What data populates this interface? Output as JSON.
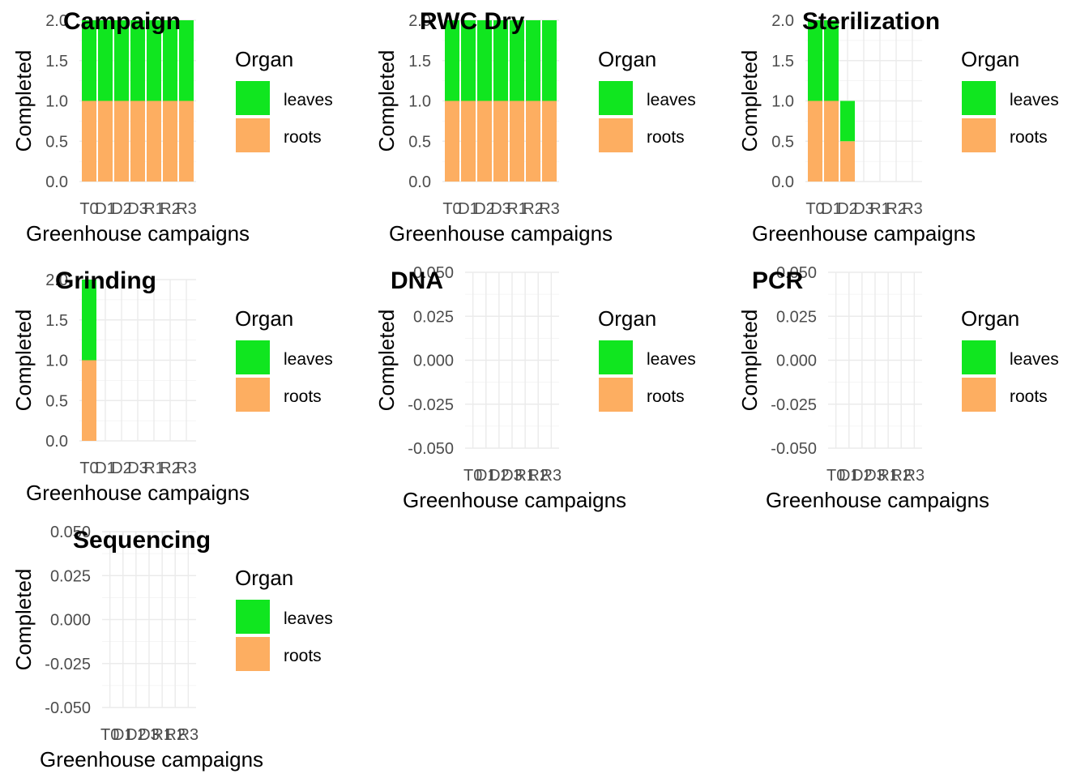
{
  "chart_data": [
    {
      "type": "bar",
      "stacked": true,
      "title": "Campaign",
      "xlabel": "Greenhouse campaigns",
      "ylabel": "Completed",
      "categories": [
        "T0",
        "D1",
        "D2",
        "D3",
        "R1",
        "R2",
        "R3"
      ],
      "ylim": [
        0,
        2
      ],
      "yticks": [
        "0.0",
        "0.5",
        "1.0",
        "1.5",
        "2.0"
      ],
      "grid": true,
      "legend": {
        "title": "Organ",
        "position": "right",
        "items": [
          "leaves",
          "roots"
        ]
      },
      "series": [
        {
          "name": "roots",
          "color": "#FDAE61",
          "values": [
            1,
            1,
            1,
            1,
            1,
            1,
            1
          ]
        },
        {
          "name": "leaves",
          "color": "#10E61F",
          "values": [
            1,
            1,
            1,
            1,
            1,
            1,
            1
          ]
        }
      ]
    },
    {
      "type": "bar",
      "stacked": true,
      "title": "RWC Dry",
      "xlabel": "Greenhouse campaigns",
      "ylabel": "Completed",
      "categories": [
        "T0",
        "D1",
        "D2",
        "D3",
        "R1",
        "R2",
        "R3"
      ],
      "ylim": [
        0,
        2
      ],
      "yticks": [
        "0.0",
        "0.5",
        "1.0",
        "1.5",
        "2.0"
      ],
      "grid": true,
      "legend": {
        "title": "Organ",
        "position": "right",
        "items": [
          "leaves",
          "roots"
        ]
      },
      "series": [
        {
          "name": "roots",
          "color": "#FDAE61",
          "values": [
            1,
            1,
            1,
            1,
            1,
            1,
            1
          ]
        },
        {
          "name": "leaves",
          "color": "#10E61F",
          "values": [
            1,
            1,
            1,
            1,
            1,
            1,
            1
          ]
        }
      ]
    },
    {
      "type": "bar",
      "stacked": true,
      "title": "Sterilization",
      "xlabel": "Greenhouse campaigns",
      "ylabel": "Completed",
      "categories": [
        "T0",
        "D1",
        "D2",
        "D3",
        "R1",
        "R2",
        "R3"
      ],
      "ylim": [
        0,
        2
      ],
      "yticks": [
        "0.0",
        "0.5",
        "1.0",
        "1.5",
        "2.0"
      ],
      "grid": true,
      "legend": {
        "title": "Organ",
        "position": "right",
        "items": [
          "leaves",
          "roots"
        ]
      },
      "series": [
        {
          "name": "roots",
          "color": "#FDAE61",
          "values": [
            1,
            1,
            0.5,
            0,
            0,
            0,
            0
          ]
        },
        {
          "name": "leaves",
          "color": "#10E61F",
          "values": [
            1,
            1,
            0.5,
            0,
            0,
            0,
            0
          ]
        }
      ]
    },
    {
      "type": "bar",
      "stacked": true,
      "title": "Grinding",
      "xlabel": "Greenhouse campaigns",
      "ylabel": "Completed",
      "categories": [
        "T0",
        "D1",
        "D2",
        "D3",
        "R1",
        "R2",
        "R3"
      ],
      "ylim": [
        0,
        2
      ],
      "yticks": [
        "0.0",
        "0.5",
        "1.0",
        "1.5",
        "2.0"
      ],
      "grid": true,
      "legend": {
        "title": "Organ",
        "position": "right",
        "items": [
          "leaves",
          "roots"
        ]
      },
      "series": [
        {
          "name": "roots",
          "color": "#FDAE61",
          "values": [
            1,
            0,
            0,
            0,
            0,
            0,
            0
          ]
        },
        {
          "name": "leaves",
          "color": "#10E61F",
          "values": [
            1,
            0,
            0,
            0,
            0,
            0,
            0
          ]
        }
      ]
    },
    {
      "type": "bar",
      "stacked": true,
      "title": "DNA",
      "xlabel": "Greenhouse campaigns",
      "ylabel": "Completed",
      "categories": [
        "T0",
        "D1",
        "D2",
        "D3",
        "R1",
        "R2",
        "R3"
      ],
      "ylim": [
        -0.05,
        0.05
      ],
      "yticks": [
        "-0.050",
        "-0.025",
        "0.000",
        "0.025",
        "0.050"
      ],
      "grid": true,
      "legend": {
        "title": "Organ",
        "position": "right",
        "items": [
          "leaves",
          "roots"
        ]
      },
      "series": [
        {
          "name": "roots",
          "color": "#FDAE61",
          "values": [
            0,
            0,
            0,
            0,
            0,
            0,
            0
          ]
        },
        {
          "name": "leaves",
          "color": "#10E61F",
          "values": [
            0,
            0,
            0,
            0,
            0,
            0,
            0
          ]
        }
      ]
    },
    {
      "type": "bar",
      "stacked": true,
      "title": "PCR",
      "xlabel": "Greenhouse campaigns",
      "ylabel": "Completed",
      "categories": [
        "T0",
        "D1",
        "D2",
        "D3",
        "R1",
        "R2",
        "R3"
      ],
      "ylim": [
        -0.05,
        0.05
      ],
      "yticks": [
        "-0.050",
        "-0.025",
        "0.000",
        "0.025",
        "0.050"
      ],
      "grid": true,
      "legend": {
        "title": "Organ",
        "position": "right",
        "items": [
          "leaves",
          "roots"
        ]
      },
      "series": [
        {
          "name": "roots",
          "color": "#FDAE61",
          "values": [
            0,
            0,
            0,
            0,
            0,
            0,
            0
          ]
        },
        {
          "name": "leaves",
          "color": "#10E61F",
          "values": [
            0,
            0,
            0,
            0,
            0,
            0,
            0
          ]
        }
      ]
    },
    {
      "type": "bar",
      "stacked": true,
      "title": "Sequencing",
      "xlabel": "Greenhouse campaigns",
      "ylabel": "Completed",
      "categories": [
        "T0",
        "D1",
        "D2",
        "D3",
        "R1",
        "R2",
        "R3"
      ],
      "ylim": [
        -0.05,
        0.05
      ],
      "yticks": [
        "-0.050",
        "-0.025",
        "0.000",
        "0.025",
        "0.050"
      ],
      "grid": true,
      "legend": {
        "title": "Organ",
        "position": "right",
        "items": [
          "leaves",
          "roots"
        ]
      },
      "series": [
        {
          "name": "roots",
          "color": "#FDAE61",
          "values": [
            0,
            0,
            0,
            0,
            0,
            0,
            0
          ]
        },
        {
          "name": "leaves",
          "color": "#10E61F",
          "values": [
            0,
            0,
            0,
            0,
            0,
            0,
            0
          ]
        }
      ]
    }
  ]
}
